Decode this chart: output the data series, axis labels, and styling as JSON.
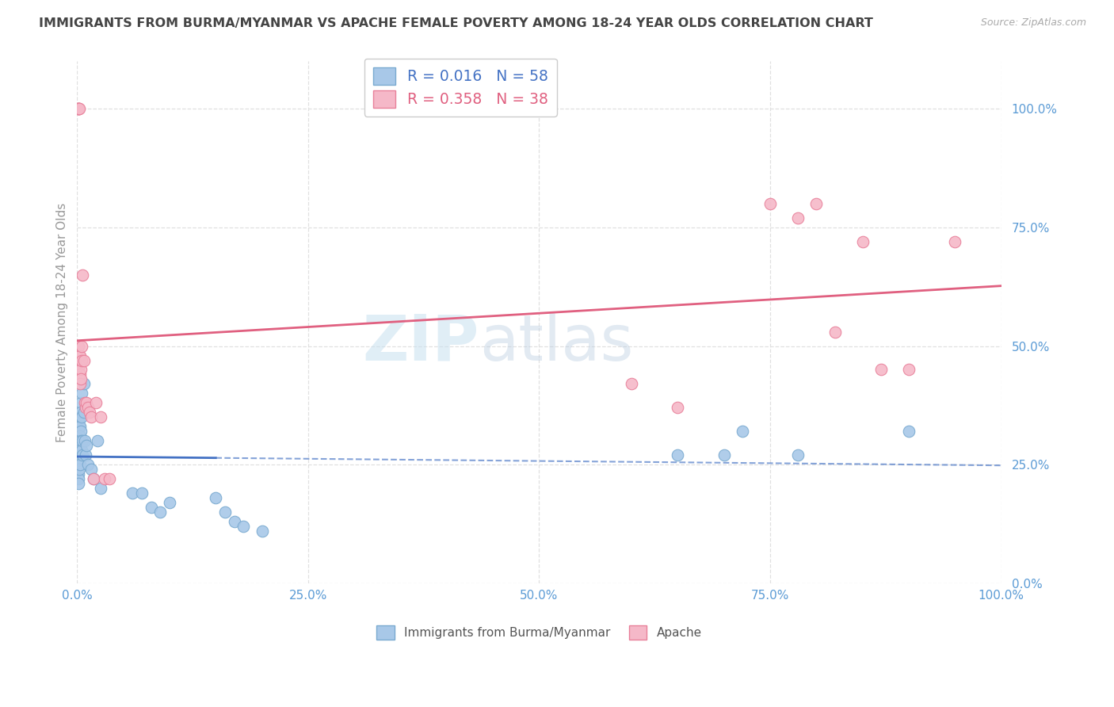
{
  "title": "IMMIGRANTS FROM BURMA/MYANMAR VS APACHE FEMALE POVERTY AMONG 18-24 YEAR OLDS CORRELATION CHART",
  "source": "Source: ZipAtlas.com",
  "ylabel": "Female Poverty Among 18-24 Year Olds",
  "r_blue": 0.016,
  "n_blue": 58,
  "r_pink": 0.358,
  "n_pink": 38,
  "blue_scatter_color": "#a8c8e8",
  "blue_edge_color": "#7aaad0",
  "pink_scatter_color": "#f5b8c8",
  "pink_edge_color": "#e8809a",
  "blue_line_color": "#4472c4",
  "pink_line_color": "#e06080",
  "axis_tick_color": "#5b9bd5",
  "ylabel_color": "#999999",
  "title_color": "#444444",
  "source_color": "#aaaaaa",
  "grid_color": "#e0e0e0",
  "legend1_label": "Immigrants from Burma/Myanmar",
  "legend2_label": "Apache",
  "blue_x": [
    0.001,
    0.001,
    0.001,
    0.001,
    0.001,
    0.001,
    0.001,
    0.001,
    0.001,
    0.001,
    0.002,
    0.002,
    0.002,
    0.002,
    0.002,
    0.002,
    0.002,
    0.002,
    0.003,
    0.003,
    0.003,
    0.003,
    0.003,
    0.003,
    0.004,
    0.004,
    0.004,
    0.004,
    0.005,
    0.005,
    0.005,
    0.006,
    0.006,
    0.007,
    0.007,
    0.008,
    0.009,
    0.01,
    0.012,
    0.015,
    0.018,
    0.022,
    0.025,
    0.06,
    0.07,
    0.08,
    0.09,
    0.1,
    0.15,
    0.16,
    0.17,
    0.18,
    0.2,
    0.65,
    0.7,
    0.72,
    0.78,
    0.9
  ],
  "blue_y": [
    0.3,
    0.29,
    0.28,
    0.27,
    0.26,
    0.25,
    0.24,
    0.23,
    0.22,
    0.21,
    0.33,
    0.31,
    0.29,
    0.28,
    0.27,
    0.26,
    0.25,
    0.24,
    0.35,
    0.33,
    0.31,
    0.29,
    0.27,
    0.25,
    0.38,
    0.36,
    0.32,
    0.3,
    0.4,
    0.35,
    0.28,
    0.3,
    0.27,
    0.42,
    0.36,
    0.3,
    0.27,
    0.29,
    0.25,
    0.24,
    0.22,
    0.3,
    0.2,
    0.19,
    0.19,
    0.16,
    0.15,
    0.17,
    0.18,
    0.15,
    0.13,
    0.12,
    0.11,
    0.27,
    0.27,
    0.32,
    0.27,
    0.32
  ],
  "pink_x": [
    0.001,
    0.001,
    0.001,
    0.001,
    0.001,
    0.002,
    0.002,
    0.002,
    0.003,
    0.003,
    0.003,
    0.004,
    0.004,
    0.005,
    0.005,
    0.006,
    0.007,
    0.008,
    0.009,
    0.01,
    0.012,
    0.013,
    0.015,
    0.018,
    0.02,
    0.025,
    0.03,
    0.035,
    0.6,
    0.65,
    0.75,
    0.78,
    0.8,
    0.82,
    0.85,
    0.87,
    0.9,
    0.95
  ],
  "pink_y": [
    1.0,
    1.0,
    1.0,
    1.0,
    0.5,
    1.0,
    0.48,
    0.46,
    0.48,
    0.44,
    0.42,
    0.45,
    0.43,
    0.5,
    0.47,
    0.65,
    0.47,
    0.38,
    0.37,
    0.38,
    0.37,
    0.36,
    0.35,
    0.22,
    0.38,
    0.35,
    0.22,
    0.22,
    0.42,
    0.37,
    0.8,
    0.77,
    0.8,
    0.53,
    0.72,
    0.45,
    0.45,
    0.72
  ],
  "xlim": [
    0.0,
    1.0
  ],
  "ylim": [
    0.0,
    1.1
  ],
  "xticks": [
    0.0,
    0.25,
    0.5,
    0.75,
    1.0
  ],
  "xtick_labels": [
    "0.0%",
    "25.0%",
    "50.0%",
    "75.0%",
    "100.0%"
  ],
  "ytick_vals": [
    0.0,
    0.25,
    0.5,
    0.75,
    1.0
  ],
  "ytick_labels": [
    "0.0%",
    "25.0%",
    "50.0%",
    "75.0%",
    "100.0%"
  ],
  "blue_line_x0": 0.0,
  "blue_line_x_cutoff": 0.18,
  "pink_line_x0": 0.0,
  "pink_line_x1": 1.0,
  "pink_line_y0": 0.44,
  "pink_line_y1": 0.75,
  "blue_line_y0": 0.268,
  "blue_line_y1": 0.285
}
